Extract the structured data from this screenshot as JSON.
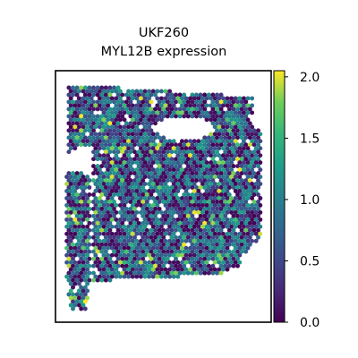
{
  "chart_data": {
    "type": "scatter",
    "title_line1": "UKF260",
    "title_line2": "MYL12B expression",
    "xlabel": "",
    "ylabel": "",
    "frame_ticks": false,
    "marker": "hexagonal spot",
    "colormap": "viridis",
    "colorbar": {
      "range": [
        0.0,
        2.05
      ],
      "ticks": [
        0.0,
        0.5,
        1.0,
        1.5,
        2.0
      ],
      "tick_labels": [
        "0.0",
        "0.5",
        "1.0",
        "1.5",
        "2.0"
      ]
    },
    "colors": {
      "low": "#440154",
      "mid": "#21918c",
      "high": "#fde725"
    },
    "value_distribution": "mostly 0.0–1.3 with sparse spots near 1.6–2.0"
  }
}
